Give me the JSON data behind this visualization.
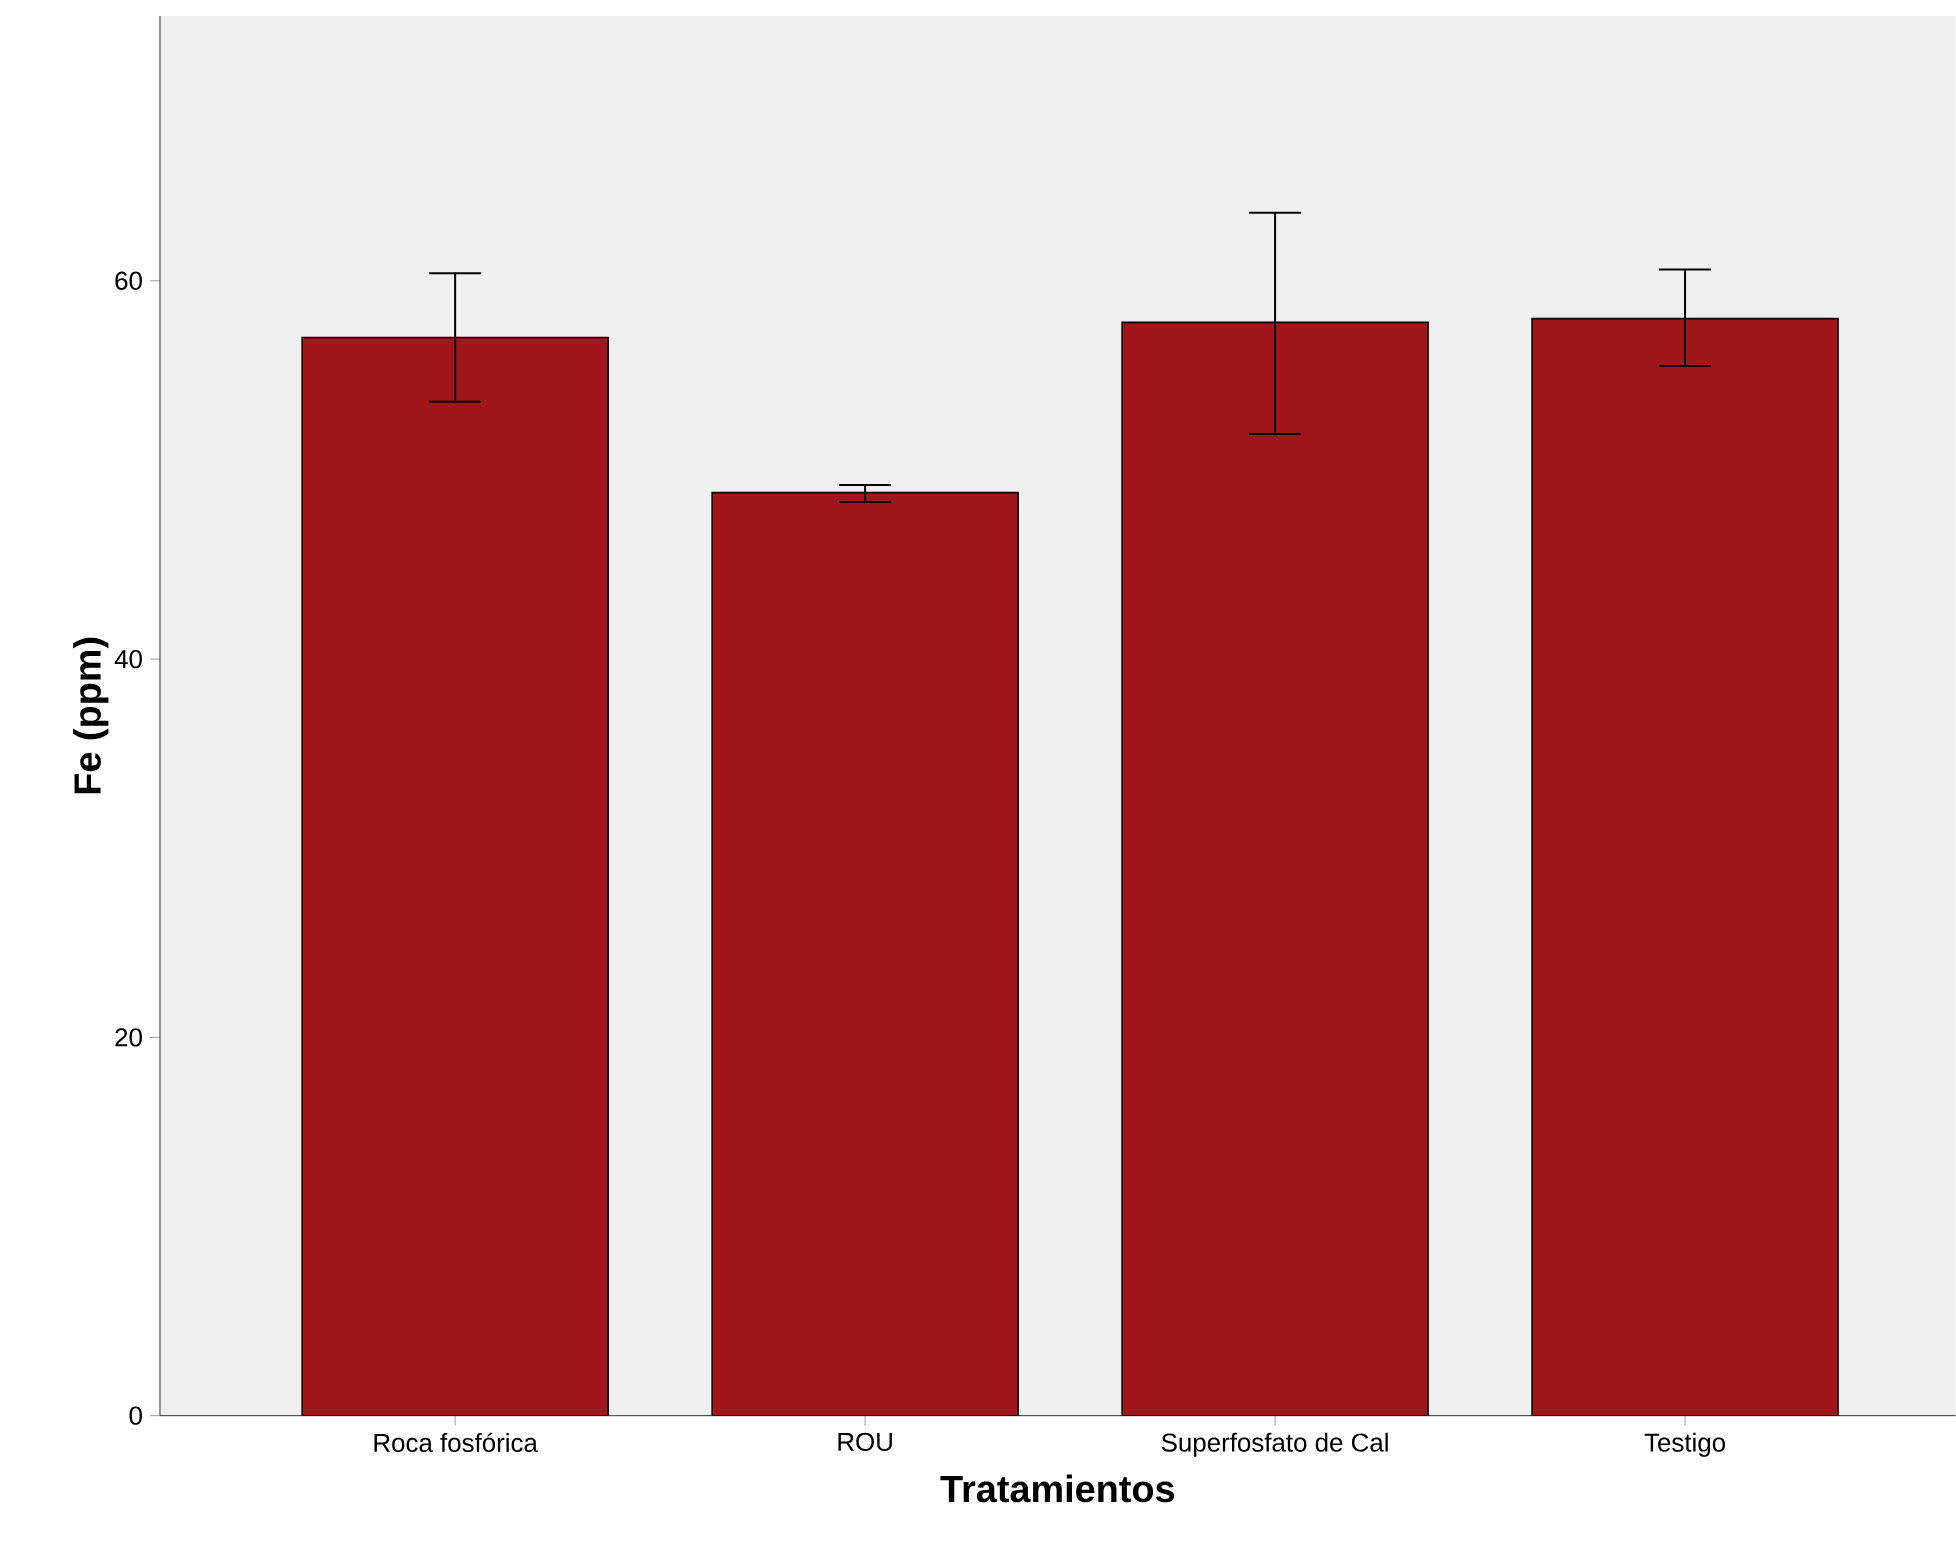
{
  "chart_data": {
    "type": "bar",
    "xlabel": "Tratamientos",
    "ylabel": "Fe (ppm)",
    "categories": [
      "Roca fosfórica",
      "ROU",
      "Superfosfato de Cal",
      "Testigo"
    ],
    "values": [
      57.0,
      48.8,
      57.8,
      58.0
    ],
    "errors": [
      [
        53.6,
        60.4
      ],
      [
        48.3,
        49.2
      ],
      [
        51.9,
        63.6
      ],
      [
        55.5,
        60.6
      ]
    ],
    "color": "#a0161a",
    "ylim": [
      0,
      74
    ],
    "yticks": [
      0,
      20,
      40,
      60
    ],
    "grid": false
  }
}
